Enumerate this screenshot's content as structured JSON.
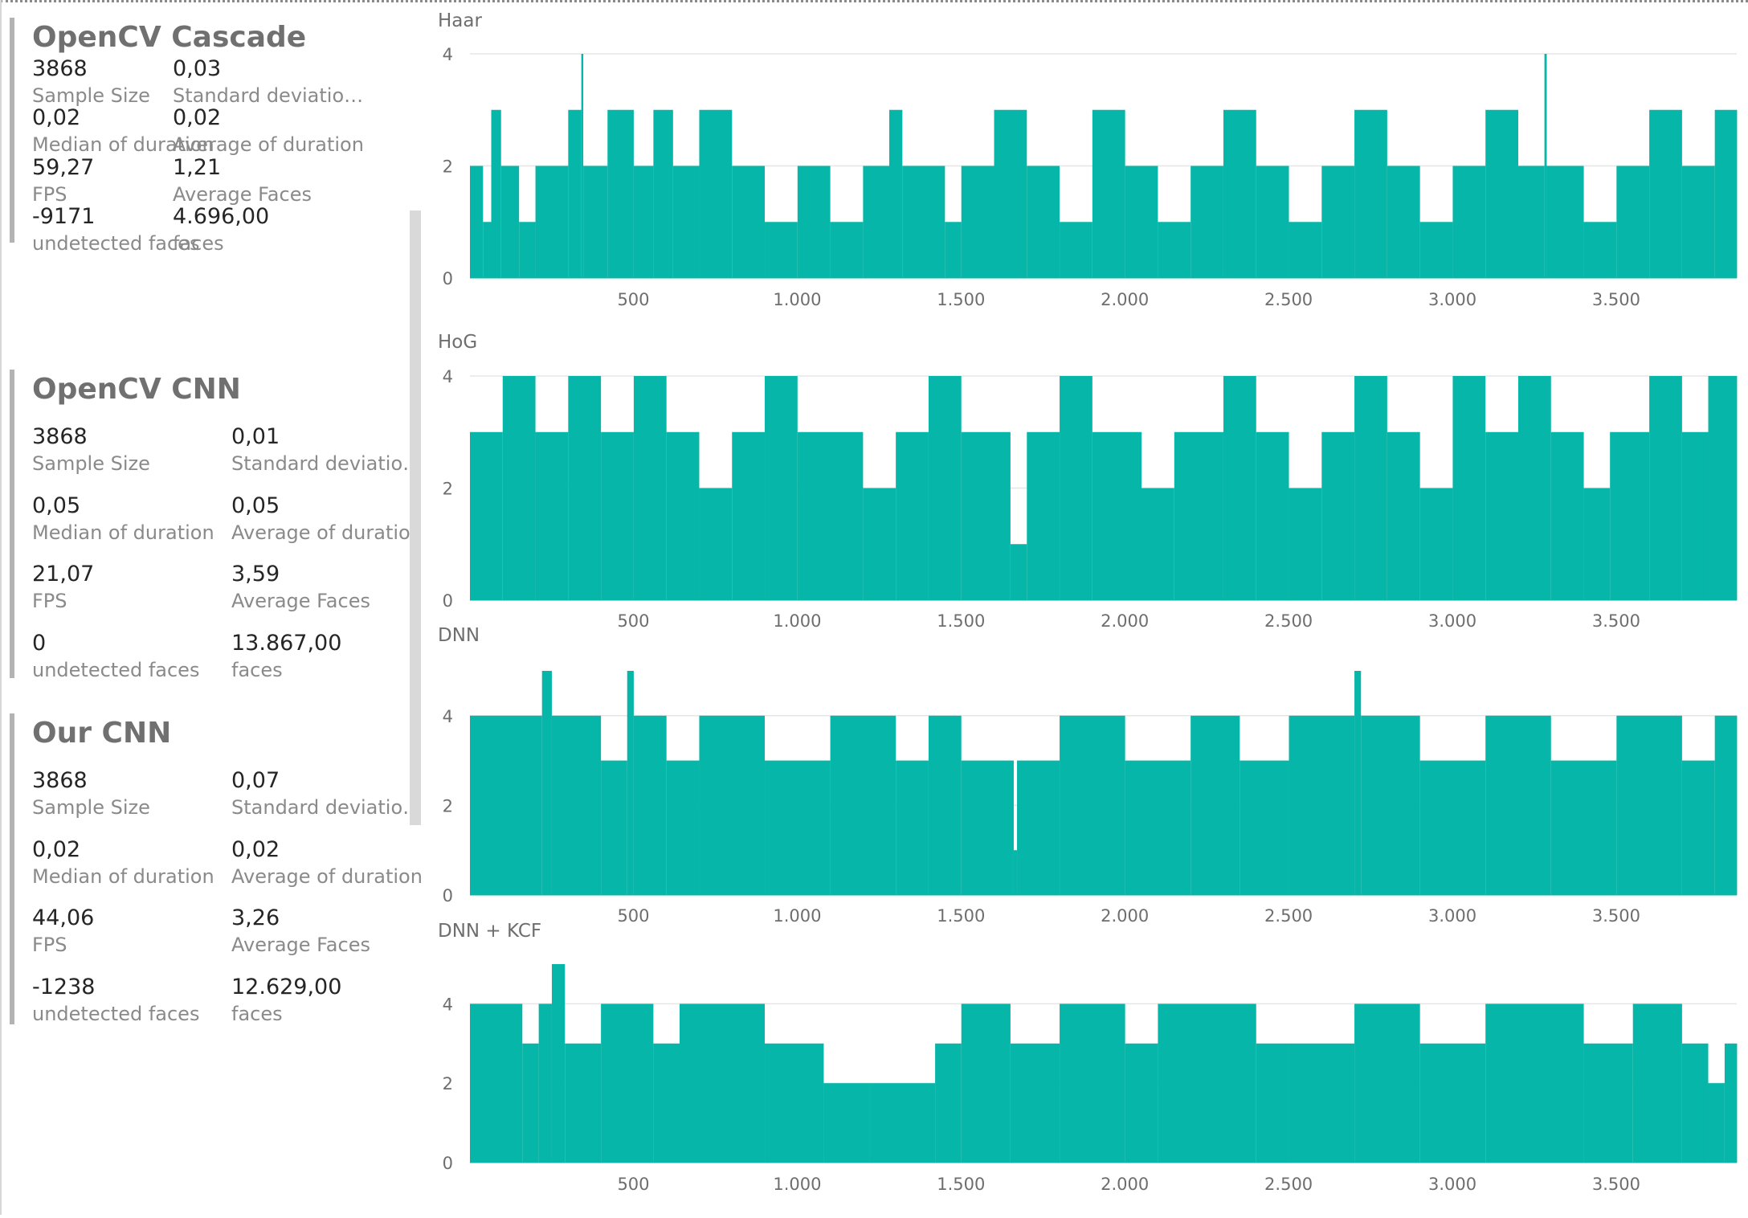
{
  "cards": [
    {
      "title": "OpenCV Cascade",
      "metrics": [
        {
          "value": "3868",
          "label": "Sample Size"
        },
        {
          "value": "0,03",
          "label": "Standard deviation of duration"
        },
        {
          "value": "0,02",
          "label": "Median of duration"
        },
        {
          "value": "0,02",
          "label": "Average of duration"
        },
        {
          "value": "59,27",
          "label": "FPS"
        },
        {
          "value": "1,21",
          "label": "Average Faces"
        },
        {
          "value": "-9171",
          "label": "undetected faces"
        },
        {
          "value": "4.696,00",
          "label": "faces"
        }
      ]
    },
    {
      "title": "OpenCV CNN",
      "metrics": [
        {
          "value": "3868",
          "label": "Sample Size"
        },
        {
          "value": "0,01",
          "label": "Standard deviation of duration"
        },
        {
          "value": "0,05",
          "label": "Median of duration"
        },
        {
          "value": "0,05",
          "label": "Average of duration"
        },
        {
          "value": "21,07",
          "label": "FPS"
        },
        {
          "value": "3,59",
          "label": "Average Faces"
        },
        {
          "value": "0",
          "label": "undetected faces"
        },
        {
          "value": "13.867,00",
          "label": "faces"
        }
      ]
    },
    {
      "title": "Our CNN",
      "metrics": [
        {
          "value": "3868",
          "label": "Sample Size"
        },
        {
          "value": "0,07",
          "label": "Standard deviation of duration"
        },
        {
          "value": "0,02",
          "label": "Median of duration"
        },
        {
          "value": "0,02",
          "label": "Average of duration"
        },
        {
          "value": "44,06",
          "label": "FPS"
        },
        {
          "value": "3,26",
          "label": "Average Faces"
        },
        {
          "value": "-1238",
          "label": "undetected faces"
        },
        {
          "value": "12.629,00",
          "label": "faces"
        }
      ]
    }
  ],
  "colors": {
    "bars": "#06b6a8",
    "gridline": "#e6e6e6",
    "axis_text": "#6e6e6e",
    "card_border": "#b3b3b3"
  },
  "chart_data": [
    {
      "type": "bar",
      "title": "Haar",
      "xlabel": "",
      "ylabel": "",
      "x_range": [
        1,
        3868
      ],
      "ylim": [
        0,
        4
      ],
      "grid": true,
      "x_ticks": [
        500,
        1000,
        1500,
        2000,
        2500,
        3000,
        3500
      ],
      "x_tick_labels": [
        "500",
        "1.000",
        "1.500",
        "2.000",
        "2.500",
        "3.000",
        "3.500"
      ],
      "y_ticks": [
        0,
        2,
        4
      ],
      "y_tick_labels": [
        "0",
        "2",
        "4"
      ],
      "segments": [
        [
          1,
          40,
          2
        ],
        [
          41,
          65,
          1
        ],
        [
          66,
          95,
          3
        ],
        [
          96,
          150,
          2
        ],
        [
          151,
          200,
          1
        ],
        [
          201,
          300,
          2
        ],
        [
          301,
          340,
          3
        ],
        [
          341,
          346,
          4
        ],
        [
          347,
          420,
          2
        ],
        [
          421,
          500,
          3
        ],
        [
          501,
          560,
          2
        ],
        [
          561,
          620,
          3
        ],
        [
          621,
          700,
          2
        ],
        [
          701,
          800,
          3
        ],
        [
          801,
          900,
          2
        ],
        [
          901,
          1000,
          1
        ],
        [
          1001,
          1100,
          2
        ],
        [
          1101,
          1200,
          1
        ],
        [
          1201,
          1280,
          2
        ],
        [
          1281,
          1320,
          3
        ],
        [
          1321,
          1450,
          2
        ],
        [
          1451,
          1500,
          1
        ],
        [
          1501,
          1600,
          2
        ],
        [
          1601,
          1700,
          3
        ],
        [
          1701,
          1800,
          2
        ],
        [
          1801,
          1900,
          1
        ],
        [
          1901,
          2000,
          3
        ],
        [
          2001,
          2100,
          2
        ],
        [
          2101,
          2200,
          1
        ],
        [
          2201,
          2300,
          2
        ],
        [
          2301,
          2400,
          3
        ],
        [
          2401,
          2500,
          2
        ],
        [
          2501,
          2600,
          1
        ],
        [
          2601,
          2700,
          2
        ],
        [
          2701,
          2800,
          3
        ],
        [
          2801,
          2900,
          2
        ],
        [
          2901,
          3000,
          1
        ],
        [
          3001,
          3100,
          2
        ],
        [
          3101,
          3200,
          3
        ],
        [
          3201,
          3280,
          2
        ],
        [
          3281,
          3287,
          4
        ],
        [
          3288,
          3400,
          2
        ],
        [
          3401,
          3500,
          1
        ],
        [
          3501,
          3600,
          2
        ],
        [
          3601,
          3700,
          3
        ],
        [
          3701,
          3800,
          2
        ],
        [
          3801,
          3868,
          3
        ]
      ]
    },
    {
      "type": "bar",
      "title": "HoG",
      "xlabel": "",
      "ylabel": "",
      "x_range": [
        1,
        3868
      ],
      "ylim": [
        0,
        4
      ],
      "grid": true,
      "x_ticks": [
        500,
        1000,
        1500,
        2000,
        2500,
        3000,
        3500
      ],
      "x_tick_labels": [
        "500",
        "1.000",
        "1.500",
        "2.000",
        "2.500",
        "3.000",
        "3.500"
      ],
      "y_ticks": [
        0,
        2,
        4
      ],
      "y_tick_labels": [
        "0",
        "2",
        "4"
      ],
      "segments": [
        [
          1,
          100,
          3
        ],
        [
          101,
          200,
          4
        ],
        [
          201,
          300,
          3
        ],
        [
          301,
          400,
          4
        ],
        [
          401,
          500,
          3
        ],
        [
          501,
          600,
          4
        ],
        [
          601,
          700,
          3
        ],
        [
          701,
          800,
          2
        ],
        [
          801,
          900,
          3
        ],
        [
          901,
          1000,
          4
        ],
        [
          1001,
          1200,
          3
        ],
        [
          1201,
          1300,
          2
        ],
        [
          1301,
          1400,
          3
        ],
        [
          1401,
          1500,
          4
        ],
        [
          1501,
          1650,
          3
        ],
        [
          1651,
          1700,
          1
        ],
        [
          1701,
          1800,
          3
        ],
        [
          1801,
          1900,
          4
        ],
        [
          1901,
          2050,
          3
        ],
        [
          2051,
          2150,
          2
        ],
        [
          2151,
          2300,
          3
        ],
        [
          2301,
          2400,
          4
        ],
        [
          2401,
          2500,
          3
        ],
        [
          2501,
          2600,
          2
        ],
        [
          2601,
          2700,
          3
        ],
        [
          2701,
          2800,
          4
        ],
        [
          2801,
          2900,
          3
        ],
        [
          2901,
          3000,
          2
        ],
        [
          3001,
          3100,
          4
        ],
        [
          3101,
          3200,
          3
        ],
        [
          3201,
          3300,
          4
        ],
        [
          3301,
          3400,
          3
        ],
        [
          3401,
          3480,
          2
        ],
        [
          3481,
          3600,
          3
        ],
        [
          3601,
          3700,
          4
        ],
        [
          3701,
          3780,
          3
        ],
        [
          3781,
          3868,
          4
        ]
      ]
    },
    {
      "type": "bar",
      "title": "DNN",
      "xlabel": "",
      "ylabel": "",
      "x_range": [
        1,
        3868
      ],
      "ylim": [
        0,
        5
      ],
      "grid": true,
      "x_ticks": [
        500,
        1000,
        1500,
        2000,
        2500,
        3000,
        3500
      ],
      "x_tick_labels": [
        "500",
        "1.000",
        "1.500",
        "2.000",
        "2.500",
        "3.000",
        "3.500"
      ],
      "y_ticks": [
        0,
        2,
        4
      ],
      "y_tick_labels": [
        "0",
        "2",
        "4"
      ],
      "segments": [
        [
          1,
          220,
          4
        ],
        [
          221,
          250,
          5
        ],
        [
          251,
          400,
          4
        ],
        [
          401,
          480,
          3
        ],
        [
          481,
          500,
          5
        ],
        [
          501,
          600,
          4
        ],
        [
          601,
          700,
          3
        ],
        [
          701,
          900,
          4
        ],
        [
          901,
          1100,
          3
        ],
        [
          1101,
          1300,
          4
        ],
        [
          1301,
          1400,
          3
        ],
        [
          1401,
          1500,
          4
        ],
        [
          1501,
          1660,
          3
        ],
        [
          1661,
          1670,
          1
        ],
        [
          1671,
          1800,
          3
        ],
        [
          1801,
          2000,
          4
        ],
        [
          2001,
          2200,
          3
        ],
        [
          2201,
          2350,
          4
        ],
        [
          2351,
          2500,
          3
        ],
        [
          2501,
          2700,
          4
        ],
        [
          2701,
          2720,
          5
        ],
        [
          2721,
          2900,
          4
        ],
        [
          2901,
          3100,
          3
        ],
        [
          3101,
          3300,
          4
        ],
        [
          3301,
          3500,
          3
        ],
        [
          3501,
          3700,
          4
        ],
        [
          3701,
          3800,
          3
        ],
        [
          3801,
          3868,
          4
        ]
      ]
    },
    {
      "type": "bar",
      "title": "DNN + KCF",
      "xlabel": "",
      "ylabel": "",
      "x_range": [
        1,
        3868
      ],
      "ylim": [
        0,
        5
      ],
      "grid": true,
      "x_ticks": [
        500,
        1000,
        1500,
        2000,
        2500,
        3000,
        3500
      ],
      "x_tick_labels": [
        "500",
        "1.000",
        "1.500",
        "2.000",
        "2.500",
        "3.000",
        "3.500"
      ],
      "y_ticks": [
        0,
        2,
        4
      ],
      "y_tick_labels": [
        "0",
        "2",
        "4"
      ],
      "segments": [
        [
          1,
          160,
          4
        ],
        [
          161,
          210,
          3
        ],
        [
          211,
          250,
          4
        ],
        [
          251,
          290,
          5
        ],
        [
          291,
          400,
          3
        ],
        [
          401,
          560,
          4
        ],
        [
          561,
          640,
          3
        ],
        [
          641,
          900,
          4
        ],
        [
          901,
          1080,
          3
        ],
        [
          1081,
          1220,
          2
        ],
        [
          1221,
          1420,
          2
        ],
        [
          1421,
          1500,
          3
        ],
        [
          1501,
          1650,
          4
        ],
        [
          1651,
          1800,
          3
        ],
        [
          1801,
          2000,
          4
        ],
        [
          2001,
          2100,
          3
        ],
        [
          2101,
          2400,
          4
        ],
        [
          2401,
          2500,
          3
        ],
        [
          2501,
          2700,
          3
        ],
        [
          2701,
          2900,
          4
        ],
        [
          2901,
          3100,
          3
        ],
        [
          3101,
          3400,
          4
        ],
        [
          3401,
          3550,
          3
        ],
        [
          3551,
          3700,
          4
        ],
        [
          3701,
          3780,
          3
        ],
        [
          3781,
          3830,
          2
        ],
        [
          3831,
          3868,
          3
        ]
      ]
    }
  ]
}
